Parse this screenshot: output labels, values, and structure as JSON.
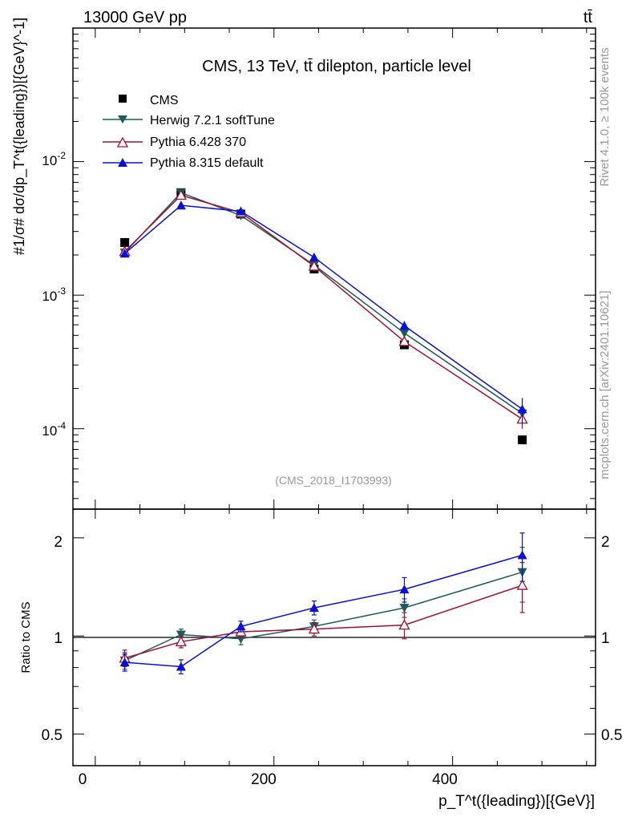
{
  "header": {
    "beam_label": "13000 GeV pp",
    "process_label": "tt̄"
  },
  "side_labels": {
    "rivet": "Rivet 4.1.0, ≥ 100k events",
    "mcplots": "mcplots.cern.ch [arXiv:2401.10621]"
  },
  "analysis_id": "(CMS_2018_I1703993)",
  "colors": {
    "cms": "#000000",
    "herwig": "#1f5a5a",
    "pythia6": "#a01030",
    "pythia8": "#0a10d8",
    "watermark": "#999999"
  },
  "chart_data": [
    {
      "type": "scatter",
      "title": "CMS, 13 TeV, tt̄ dilepton, particle level",
      "ylabel": "#1/σ# dσ/dp_T^t({leading})[{GeV}^-1]",
      "yscale": "log",
      "ylim": [
        2.5e-05,
        0.1
      ],
      "ytick_labels": [
        "10^-2",
        "10^-3",
        "10^-4"
      ],
      "xlim": [
        -25,
        560
      ],
      "x": [
        33,
        96,
        163,
        245,
        346,
        478
      ],
      "series": [
        {
          "name": "CMS",
          "marker": "square-filled",
          "values": [
            0.00248,
            0.00585,
            0.00405,
            0.00157,
            0.000425,
            8.25e-05
          ]
        },
        {
          "name": "Herwig 7.2.1 softTune",
          "marker": "triangle-down-filled",
          "values": [
            0.00208,
            0.00585,
            0.00395,
            0.00168,
            0.00052,
            0.00013
          ],
          "errors": [
            0.0001,
            0.00015,
            0.0001,
            6e-05,
            3e-05,
            1.5e-05
          ]
        },
        {
          "name": "Pythia 6.428 370",
          "marker": "triangle-up-open",
          "values": [
            0.00212,
            0.0056,
            0.00415,
            0.00165,
            0.00045,
            0.000118
          ],
          "errors": [
            0.0001,
            0.00015,
            0.0001,
            6e-05,
            3e-05,
            1.8e-05
          ]
        },
        {
          "name": "Pythia 8.315 default",
          "marker": "triangle-up-filled",
          "values": [
            0.00205,
            0.0047,
            0.00425,
            0.00192,
            0.00059,
            0.00014
          ],
          "errors": [
            0.0001,
            0.00015,
            0.0001,
            8e-05,
            5e-05,
            3e-05
          ]
        }
      ]
    },
    {
      "type": "scatter",
      "ylabel": "Ratio to CMS",
      "xlabel": "p_T^t({leading})[{GeV}]",
      "yscale": "log",
      "ylim": [
        0.4,
        2.45
      ],
      "ytick_labels": [
        "2",
        "1",
        "0.5"
      ],
      "xlim": [
        -25,
        560
      ],
      "xtick_labels": [
        "0",
        "200",
        "400"
      ],
      "x": [
        33,
        96,
        163,
        245,
        346,
        478
      ],
      "series": [
        {
          "name": "Herwig 7.2.1 softTune",
          "values": [
            0.84,
            1.01,
            0.98,
            1.07,
            1.22,
            1.57
          ],
          "errors": [
            0.05,
            0.04,
            0.04,
            0.05,
            0.08,
            0.3
          ]
        },
        {
          "name": "Pythia 6.428 370",
          "values": [
            0.855,
            0.96,
            1.03,
            1.05,
            1.08,
            1.43
          ],
          "errors": [
            0.05,
            0.04,
            0.04,
            0.05,
            0.1,
            0.25
          ]
        },
        {
          "name": "Pythia 8.315 default",
          "values": [
            0.83,
            0.805,
            1.07,
            1.22,
            1.39,
            1.77
          ],
          "errors": [
            0.05,
            0.04,
            0.04,
            0.06,
            0.12,
            0.3
          ]
        }
      ]
    }
  ]
}
